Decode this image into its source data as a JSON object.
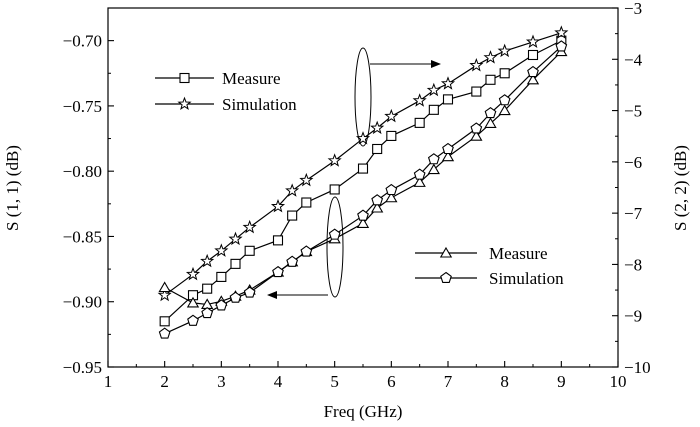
{
  "chart_data": {
    "type": "line",
    "xlabel": "Freq (GHz)",
    "ylabel_left": "S (1, 1) (dB)",
    "ylabel_right": "S (2, 2) (dB)",
    "xlim": [
      1,
      10
    ],
    "ylim_left": [
      -0.95,
      -0.675
    ],
    "ylim_right": [
      -10,
      -3
    ],
    "x_ticks": [
      1,
      2,
      3,
      4,
      5,
      6,
      7,
      8,
      9,
      10
    ],
    "x_tick_labels": [
      "1",
      "2",
      "3",
      "4",
      "5",
      "6",
      "7",
      "8",
      "9",
      "10"
    ],
    "y_left_ticks": [
      -0.95,
      -0.9,
      -0.85,
      -0.8,
      -0.75,
      -0.7
    ],
    "y_left_tick_labels": [
      "−0.95",
      "−0.90",
      "−0.85",
      "−0.80",
      "−0.75",
      "−0.70"
    ],
    "y_right_ticks": [
      -10,
      -9,
      -8,
      -7,
      -6,
      -5,
      -4,
      -3
    ],
    "y_right_tick_labels": [
      "−10",
      "−9",
      "−8",
      "−7",
      "−6",
      "−5",
      "−4",
      "−3"
    ],
    "grid": false,
    "series": [
      {
        "name": "Measure",
        "axis": "left",
        "marker": "square",
        "x": [
          2,
          2.5,
          2.75,
          3,
          3.25,
          3.5,
          4,
          4.25,
          4.5,
          5,
          5.5,
          5.75,
          6,
          6.5,
          6.75,
          7,
          7.5,
          7.75,
          8,
          8.5,
          9
        ],
        "y": [
          -0.915,
          -0.895,
          -0.89,
          -0.881,
          -0.871,
          -0.861,
          -0.853,
          -0.834,
          -0.824,
          -0.814,
          -0.798,
          -0.783,
          -0.773,
          -0.763,
          -0.753,
          -0.745,
          -0.739,
          -0.73,
          -0.725,
          -0.711,
          -0.7
        ]
      },
      {
        "name": "Simulation",
        "axis": "left",
        "marker": "star",
        "x": [
          2,
          2.5,
          2.75,
          3,
          3.25,
          3.5,
          4,
          4.25,
          4.5,
          5,
          5.5,
          5.75,
          6,
          6.5,
          6.75,
          7,
          7.5,
          7.75,
          8,
          8.5,
          9
        ],
        "y": [
          -0.895,
          -0.879,
          -0.869,
          -0.861,
          -0.852,
          -0.843,
          -0.827,
          -0.815,
          -0.807,
          -0.792,
          -0.775,
          -0.767,
          -0.758,
          -0.746,
          -0.738,
          -0.733,
          -0.719,
          -0.713,
          -0.708,
          -0.701,
          -0.694
        ]
      },
      {
        "name": "Measure",
        "axis": "right",
        "marker": "triangle",
        "x": [
          2,
          2.5,
          2.75,
          3,
          3.25,
          3.5,
          4,
          4.25,
          4.5,
          5,
          5.5,
          5.75,
          6,
          6.5,
          6.75,
          7,
          7.5,
          7.75,
          8,
          8.5,
          9
        ],
        "y": [
          -8.45,
          -8.75,
          -8.78,
          -8.72,
          -8.62,
          -8.5,
          -8.15,
          -7.95,
          -7.75,
          -7.5,
          -7.2,
          -6.9,
          -6.7,
          -6.4,
          -6.15,
          -5.9,
          -5.5,
          -5.25,
          -5.0,
          -4.4,
          -3.85
        ]
      },
      {
        "name": "Simulation",
        "axis": "right",
        "marker": "pentagon",
        "x": [
          2,
          2.5,
          2.75,
          3,
          3.25,
          3.5,
          4,
          4.25,
          4.5,
          5,
          5.5,
          5.75,
          6,
          6.5,
          6.75,
          7,
          7.5,
          7.75,
          8,
          8.5,
          9
        ],
        "y": [
          -9.35,
          -9.1,
          -8.95,
          -8.8,
          -8.65,
          -8.55,
          -8.15,
          -7.95,
          -7.75,
          -7.42,
          -7.05,
          -6.75,
          -6.55,
          -6.25,
          -5.95,
          -5.75,
          -5.35,
          -5.05,
          -4.8,
          -4.25,
          -3.75
        ]
      }
    ],
    "legends": [
      {
        "entries": [
          "Measure",
          "Simulation"
        ],
        "series_index": [
          0,
          1
        ],
        "placement": "upper-left"
      },
      {
        "entries": [
          "Measure",
          "Simulation"
        ],
        "series_index": [
          2,
          3
        ],
        "placement": "lower-right"
      }
    ]
  }
}
